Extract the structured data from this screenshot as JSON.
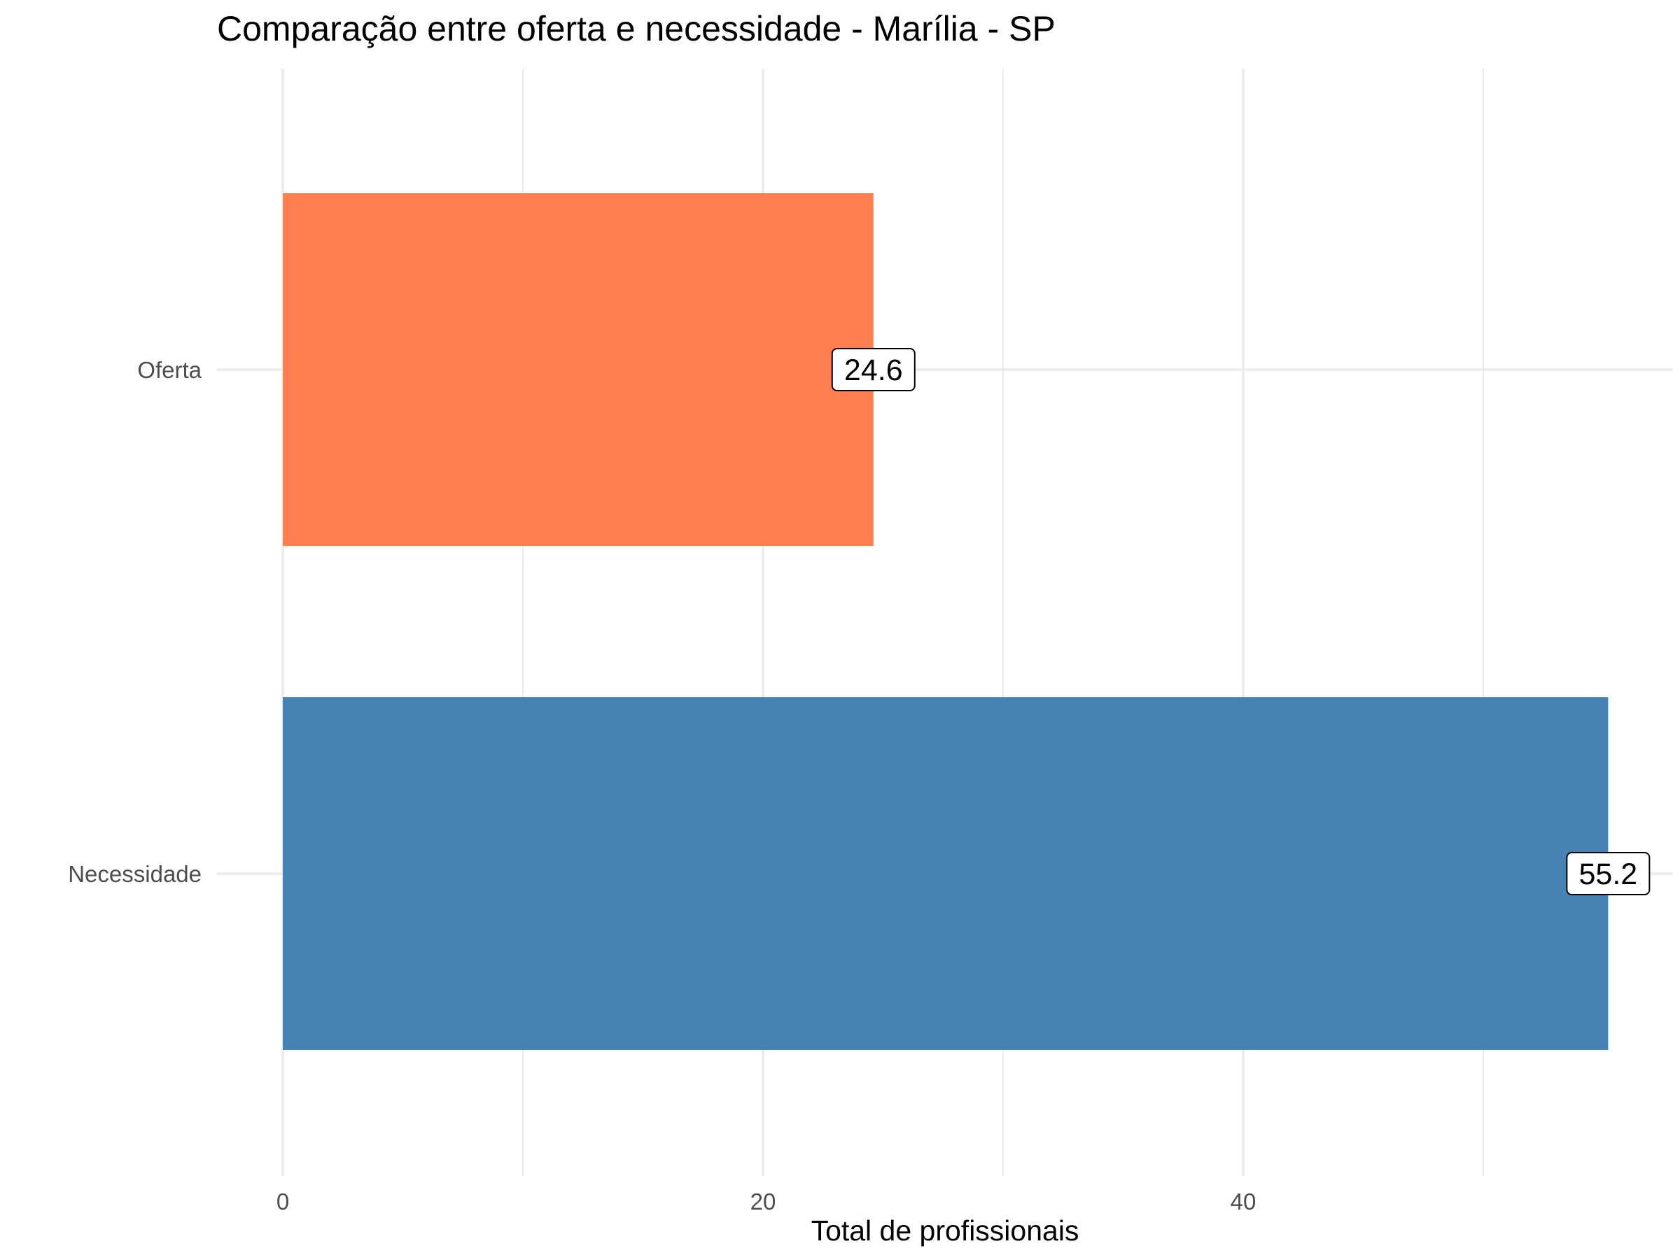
{
  "chart_data": {
    "type": "bar",
    "orientation": "horizontal",
    "title": "Comparação entre oferta e necessidade - Marília - SP",
    "xlabel": "Total de profissionais",
    "ylabel": "",
    "categories": [
      "Oferta",
      "Necessidade"
    ],
    "values": [
      24.6,
      55.2
    ],
    "value_labels": [
      "24.6",
      "55.2"
    ],
    "colors": [
      "#FF7F50",
      "#4682B4"
    ],
    "xlim": [
      0,
      58
    ],
    "xticks": [
      0,
      20,
      40
    ],
    "xtick_labels": [
      "0",
      "20",
      "40"
    ],
    "grid": true,
    "legend": "none"
  }
}
